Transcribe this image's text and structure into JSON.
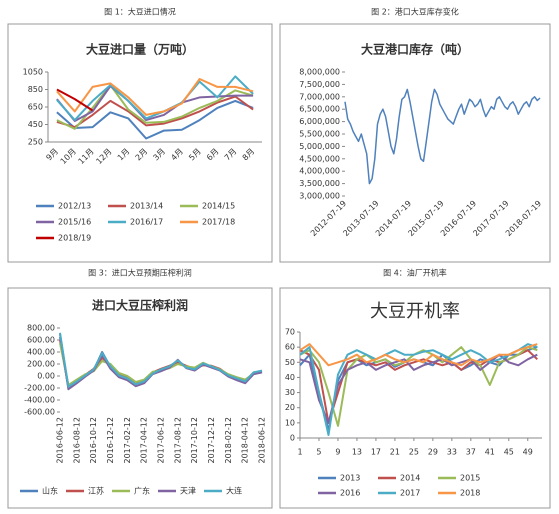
{
  "chart_data": [
    {
      "type": "line",
      "caption": "图 1：大豆进口情况",
      "title": "大豆进口量（万吨）",
      "categories": [
        "9月",
        "10月",
        "11月",
        "12月",
        "1月",
        "2月",
        "3月",
        "4月",
        "5月",
        "6月",
        "7月",
        "8月"
      ],
      "ylim": [
        250,
        1050
      ],
      "yticks": [
        250,
        450,
        650,
        850,
        1050
      ],
      "grid": false,
      "series": [
        {
          "name": "2012/13",
          "color": "#4f81bd",
          "values": [
            590,
            410,
            420,
            590,
            520,
            290,
            380,
            390,
            500,
            640,
            720,
            640
          ]
        },
        {
          "name": "2013/14",
          "color": "#c0504d",
          "values": [
            480,
            420,
            560,
            720,
            600,
            440,
            460,
            520,
            600,
            700,
            770,
            620
          ]
        },
        {
          "name": "2014/15",
          "color": "#9bbb59",
          "values": [
            500,
            400,
            640,
            900,
            620,
            470,
            480,
            540,
            640,
            720,
            840,
            780
          ]
        },
        {
          "name": "2015/16",
          "color": "#8064a2",
          "values": [
            740,
            490,
            600,
            890,
            720,
            500,
            560,
            700,
            760,
            770,
            780,
            780
          ]
        },
        {
          "name": "2016/17",
          "color": "#4bacc6",
          "values": [
            730,
            500,
            720,
            900,
            720,
            520,
            600,
            700,
            940,
            760,
            1000,
            800
          ]
        },
        {
          "name": "2017/18",
          "color": "#f79646",
          "values": [
            830,
            600,
            880,
            920,
            760,
            560,
            600,
            690,
            970,
            880,
            880,
            830
          ]
        },
        {
          "name": "2018/19",
          "color": "#c00000",
          "values": [
            850,
            740,
            610,
            null,
            null,
            null,
            null,
            null,
            null,
            null,
            null,
            null
          ]
        }
      ]
    },
    {
      "type": "line",
      "caption": "图 2：港口大豆库存变化",
      "title": "大豆港口库存（吨）",
      "categories": [
        "2012-07-19",
        null,
        null,
        null,
        null,
        null,
        null,
        null,
        null,
        null,
        null,
        null,
        "2013-07-19",
        null,
        null,
        null,
        null,
        null,
        null,
        null,
        null,
        null,
        null,
        null,
        "2014-07-19",
        null,
        null,
        null,
        null,
        null,
        null,
        null,
        null,
        null,
        null,
        null,
        "2015-07-19",
        null,
        null,
        null,
        null,
        null,
        null,
        null,
        null,
        null,
        null,
        null,
        "2016-07-19",
        null,
        null,
        null,
        null,
        null,
        null,
        null,
        null,
        null,
        null,
        null,
        "2017-07-19",
        null,
        null,
        null,
        null,
        null,
        null,
        null,
        null,
        null,
        null,
        null,
        "2018-07-19"
      ],
      "ylim": [
        3000000,
        8000000
      ],
      "yticks": [
        {
          "value": 3000000,
          "label": "3,000,000"
        },
        {
          "value": 3500000,
          "label": "3,500,000"
        },
        {
          "value": 4000000,
          "label": "4,000,000"
        },
        {
          "value": 4500000,
          "label": "4,500,000"
        },
        {
          "value": 5000000,
          "label": "5,000,000"
        },
        {
          "value": 5500000,
          "label": "5,500,000"
        },
        {
          "value": 6000000,
          "label": "6,000,000"
        },
        {
          "value": 6500000,
          "label": "6,500,000"
        },
        {
          "value": 7000000,
          "label": "7,000,000"
        },
        {
          "value": 7500000,
          "label": "7,500,000"
        },
        {
          "value": 8000000,
          "label": "8,000,000"
        }
      ],
      "grid": false,
      "series": [
        {
          "name": "库存",
          "color": "#4f81bd",
          "values": [
            6800000,
            6100000,
            5900000,
            5600000,
            5400000,
            5200000,
            5500000,
            5100000,
            4700000,
            3500000,
            3700000,
            4500000,
            5900000,
            6300000,
            6500000,
            6200000,
            5600000,
            5000000,
            4700000,
            5300000,
            6200000,
            6900000,
            7000000,
            7300000,
            6800000,
            6200000,
            5600000,
            5000000,
            4500000,
            4400000,
            5200000,
            6000000,
            6800000,
            7300000,
            7100000,
            6700000,
            6500000,
            6300000,
            6100000,
            6000000,
            5900000,
            6200000,
            6500000,
            6700000,
            6300000,
            6600000,
            6900000,
            6800000,
            6600000,
            6700000,
            6900000,
            6500000,
            6200000,
            6400000,
            6600000,
            6500000,
            6900000,
            7000000,
            6800000,
            6600000,
            6500000,
            6700000,
            6800000,
            6600000,
            6300000,
            6500000,
            6700000,
            6800000,
            6600000,
            6900000,
            7000000,
            6850000,
            6950000
          ]
        }
      ]
    },
    {
      "type": "line",
      "caption": "图 3：进口大豆预期压榨利润",
      "title": "进口大豆压榨利润",
      "categories": [
        "2016-06-12",
        null,
        "2016-08-12",
        null,
        "2016-10-12",
        null,
        "2016-12-12",
        null,
        "2017-02-12",
        null,
        "2017-04-12",
        null,
        "2017-06-12",
        null,
        "2017-08-12",
        null,
        "2017-10-12",
        null,
        "2017-12-12",
        null,
        "2018-02-12",
        null,
        "2018-04-12",
        null,
        "2018-06-12"
      ],
      "ylim": [
        -600,
        800
      ],
      "yticks": [
        {
          "value": -600,
          "label": "-600.00"
        },
        {
          "value": -400,
          "label": "-400.00"
        },
        {
          "value": -200,
          "label": "-200.00"
        },
        {
          "value": 0,
          "label": "0.00"
        },
        {
          "value": 200,
          "label": "200.00"
        },
        {
          "value": 400,
          "label": "400.00"
        },
        {
          "value": 600,
          "label": "600.00"
        },
        {
          "value": 800,
          "label": "800.00"
        }
      ],
      "grid": false,
      "series": [
        {
          "name": "山东",
          "color": "#4f81bd",
          "values": [
            650,
            -200,
            -100,
            0,
            100,
            400,
            150,
            0,
            -50,
            -150,
            -100,
            50,
            100,
            150,
            250,
            150,
            100,
            200,
            150,
            100,
            0,
            -50,
            -100,
            50,
            80
          ]
        },
        {
          "name": "江苏",
          "color": "#c0504d",
          "values": [
            600,
            -180,
            -80,
            20,
            120,
            300,
            180,
            20,
            -30,
            -120,
            -80,
            60,
            120,
            170,
            230,
            170,
            120,
            180,
            170,
            120,
            20,
            -30,
            -80,
            60,
            70
          ]
        },
        {
          "name": "广东",
          "color": "#9bbb59",
          "values": [
            550,
            -150,
            -60,
            30,
            80,
            250,
            200,
            50,
            0,
            -100,
            -60,
            70,
            90,
            130,
            200,
            160,
            140,
            220,
            160,
            110,
            30,
            -20,
            -60,
            40,
            60
          ]
        },
        {
          "name": "天津",
          "color": "#8064a2",
          "values": [
            700,
            -220,
            -120,
            -10,
            90,
            350,
            120,
            -20,
            -70,
            -170,
            -120,
            30,
            80,
            140,
            270,
            130,
            90,
            190,
            140,
            90,
            -10,
            -70,
            -120,
            30,
            60
          ]
        },
        {
          "name": "大连",
          "color": "#4bacc6",
          "values": [
            720,
            -180,
            -90,
            10,
            110,
            380,
            160,
            10,
            -40,
            -140,
            -90,
            40,
            110,
            160,
            260,
            140,
            110,
            210,
            160,
            100,
            10,
            -40,
            -90,
            60,
            90
          ]
        }
      ]
    },
    {
      "type": "line",
      "caption": "图 4：油厂开机率",
      "title": "大豆开机率",
      "x": [
        1,
        3,
        5,
        7,
        9,
        11,
        13,
        15,
        17,
        19,
        21,
        23,
        25,
        27,
        29,
        31,
        33,
        35,
        37,
        39,
        41,
        43,
        45,
        47,
        49,
        51
      ],
      "xlim": [
        1,
        52
      ],
      "xticks": [
        1,
        5,
        9,
        13,
        17,
        21,
        25,
        29,
        33,
        37,
        41,
        45,
        49
      ],
      "ylim": [
        0,
        70
      ],
      "yticks": [
        0,
        10,
        20,
        30,
        40,
        50,
        60,
        70
      ],
      "grid": false,
      "series": [
        {
          "name": "2013",
          "color": "#4f81bd",
          "values": [
            48,
            55,
            30,
            5,
            38,
            50,
            52,
            48,
            50,
            52,
            47,
            50,
            52,
            50,
            48,
            55,
            50,
            45,
            48,
            52,
            50,
            48,
            55,
            55,
            58,
            60
          ]
        },
        {
          "name": "2014",
          "color": "#c0504d",
          "values": [
            58,
            55,
            45,
            10,
            30,
            50,
            52,
            50,
            48,
            50,
            45,
            48,
            50,
            52,
            50,
            48,
            50,
            45,
            50,
            48,
            52,
            50,
            52,
            55,
            58,
            52
          ]
        },
        {
          "name": "2015",
          "color": "#9bbb59",
          "values": [
            55,
            58,
            50,
            30,
            8,
            45,
            52,
            55,
            50,
            52,
            48,
            50,
            55,
            58,
            55,
            50,
            55,
            60,
            52,
            48,
            35,
            50,
            52,
            55,
            60,
            58
          ]
        },
        {
          "name": "2016",
          "color": "#8064a2",
          "values": [
            52,
            50,
            25,
            10,
            35,
            45,
            48,
            50,
            45,
            48,
            50,
            52,
            45,
            48,
            50,
            52,
            48,
            50,
            52,
            45,
            50,
            55,
            50,
            48,
            52,
            55
          ]
        },
        {
          "name": "2017",
          "color": "#4bacc6",
          "values": [
            55,
            60,
            30,
            2,
            42,
            55,
            58,
            55,
            52,
            55,
            58,
            55,
            55,
            57,
            58,
            55,
            52,
            55,
            58,
            55,
            50,
            52,
            55,
            58,
            62,
            60
          ]
        },
        {
          "name": "2018",
          "color": "#f79646",
          "values": [
            58,
            62,
            55,
            48,
            50,
            52,
            55,
            50,
            52,
            55,
            52,
            50,
            52,
            50,
            55,
            52,
            50,
            48,
            52,
            50,
            52,
            55,
            55,
            58,
            60,
            62
          ]
        }
      ]
    }
  ]
}
